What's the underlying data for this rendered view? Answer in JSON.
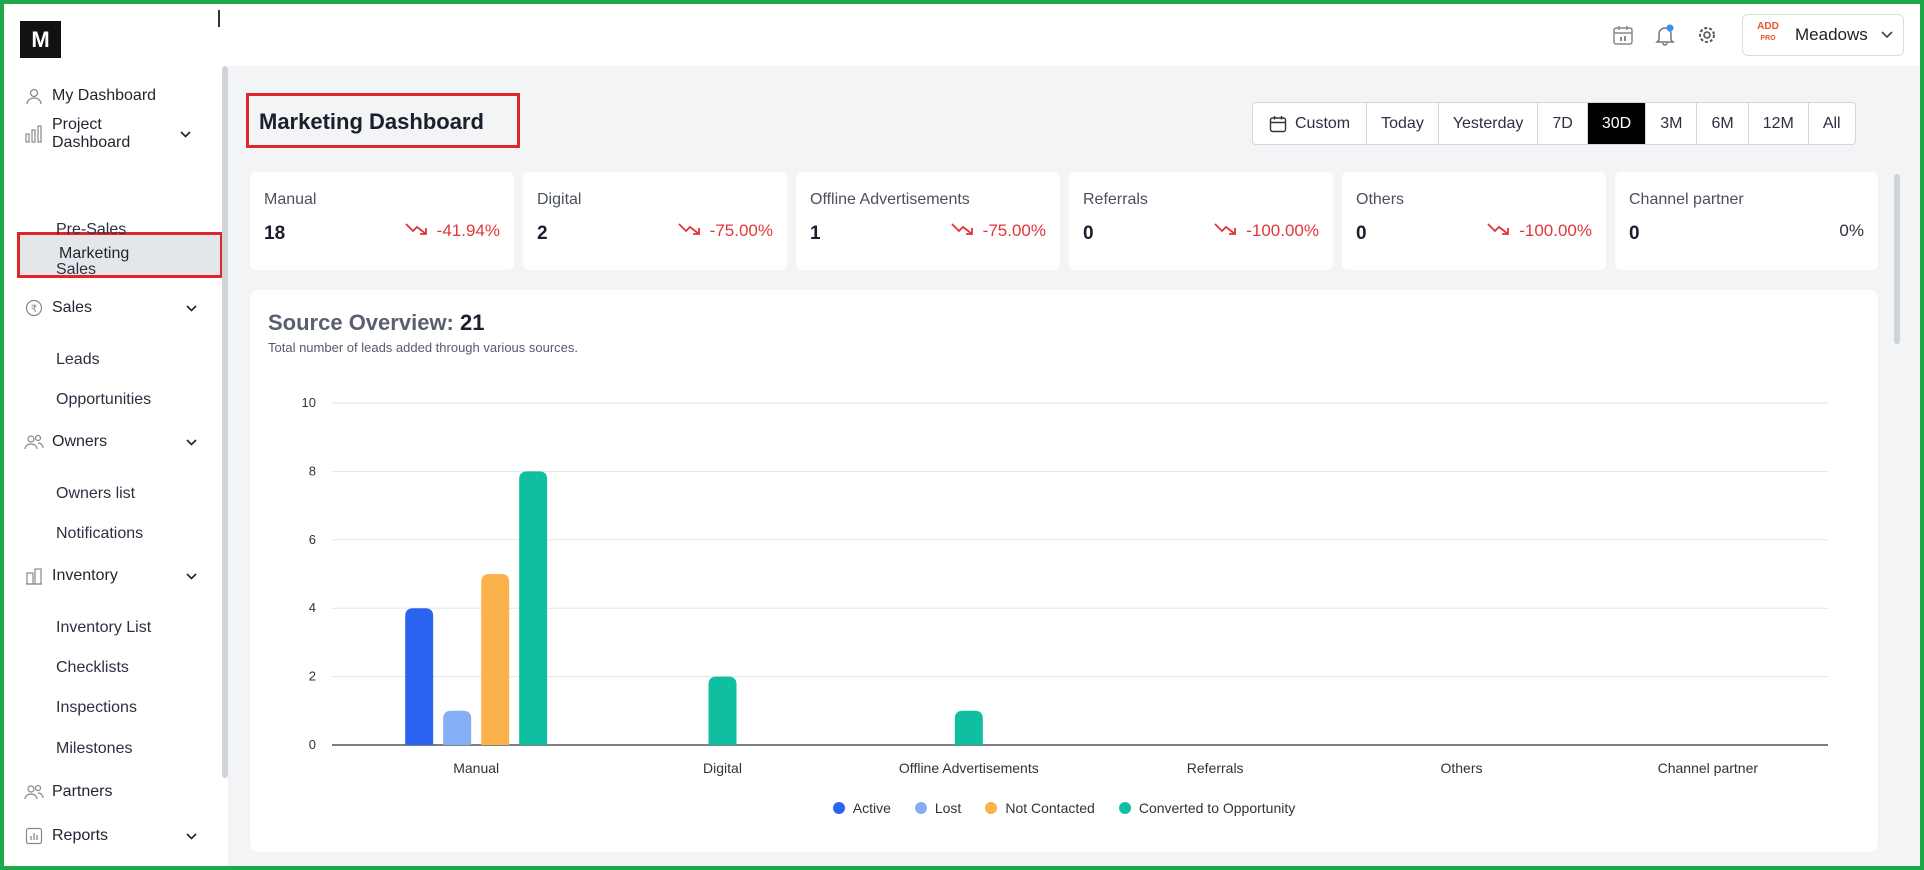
{
  "header": {
    "logo_text": "M",
    "user": {
      "logo_text_top": "ADD",
      "logo_text_bottom": "PRO",
      "name": "Meadows"
    },
    "icons": [
      "calendar-icon",
      "bell-icon",
      "gear-icon",
      "chevron-down-icon"
    ]
  },
  "sidebar": {
    "items": [
      {
        "label": "My Dashboard",
        "icon": "user-icon"
      },
      {
        "label": "Project Dashboard",
        "icon": "bar-chart-icon"
      },
      {
        "label": "Sales",
        "icon": "rupee-icon"
      },
      {
        "label": "Owners",
        "icon": "users-icon"
      },
      {
        "label": "Inventory",
        "icon": "building-icon"
      },
      {
        "label": "Partners",
        "icon": "users-icon"
      },
      {
        "label": "Reports",
        "icon": "report-icon"
      }
    ],
    "project_sub": [
      "Marketing",
      "Pre-Sales",
      "Sales"
    ],
    "sales_sub": [
      "Leads",
      "Opportunities"
    ],
    "owners_sub": [
      "Owners list",
      "Notifications"
    ],
    "inventory_sub": [
      "Inventory List",
      "Checklists",
      "Inspections",
      "Milestones"
    ]
  },
  "page": {
    "title": "Marketing Dashboard",
    "ranges": [
      "Custom",
      "Today",
      "Yesterday",
      "7D",
      "30D",
      "3M",
      "6M",
      "12M",
      "All"
    ],
    "active_range": "30D"
  },
  "cards": [
    {
      "name": "Manual",
      "value": "18",
      "change": "-41.94%",
      "trend": "down"
    },
    {
      "name": "Digital",
      "value": "2",
      "change": "-75.00%",
      "trend": "down"
    },
    {
      "name": "Offline Advertisements",
      "value": "1",
      "change": "-75.00%",
      "trend": "down"
    },
    {
      "name": "Referrals",
      "value": "0",
      "change": "-100.00%",
      "trend": "down"
    },
    {
      "name": "Others",
      "value": "0",
      "change": "-100.00%",
      "trend": "down"
    },
    {
      "name": "Channel partner",
      "value": "0",
      "change": "0%",
      "trend": "flat"
    }
  ],
  "overview": {
    "title_label": "Source Overview:",
    "title_value": "21",
    "subtitle": "Total number of leads added through various sources."
  },
  "chart_data": {
    "type": "bar",
    "categories": [
      "Manual",
      "Digital",
      "Offline Advertisements",
      "Referrals",
      "Others",
      "Channel partner"
    ],
    "series": [
      {
        "name": "Active",
        "color": "#2b64f0",
        "values": [
          4,
          0,
          0,
          0,
          0,
          0
        ]
      },
      {
        "name": "Lost",
        "color": "#85aef5",
        "values": [
          1,
          0,
          0,
          0,
          0,
          0
        ]
      },
      {
        "name": "Not Contacted",
        "color": "#fbb24a",
        "values": [
          5,
          0,
          0,
          0,
          0,
          0
        ]
      },
      {
        "name": "Converted to Opportunity",
        "color": "#10bf9f",
        "values": [
          8,
          2,
          1,
          0,
          0,
          0
        ]
      }
    ],
    "y_ticks": [
      "0",
      "2",
      "4",
      "6",
      "8",
      "10"
    ],
    "ylim": [
      0,
      10
    ],
    "grid": true,
    "legend": "bottom-center"
  }
}
